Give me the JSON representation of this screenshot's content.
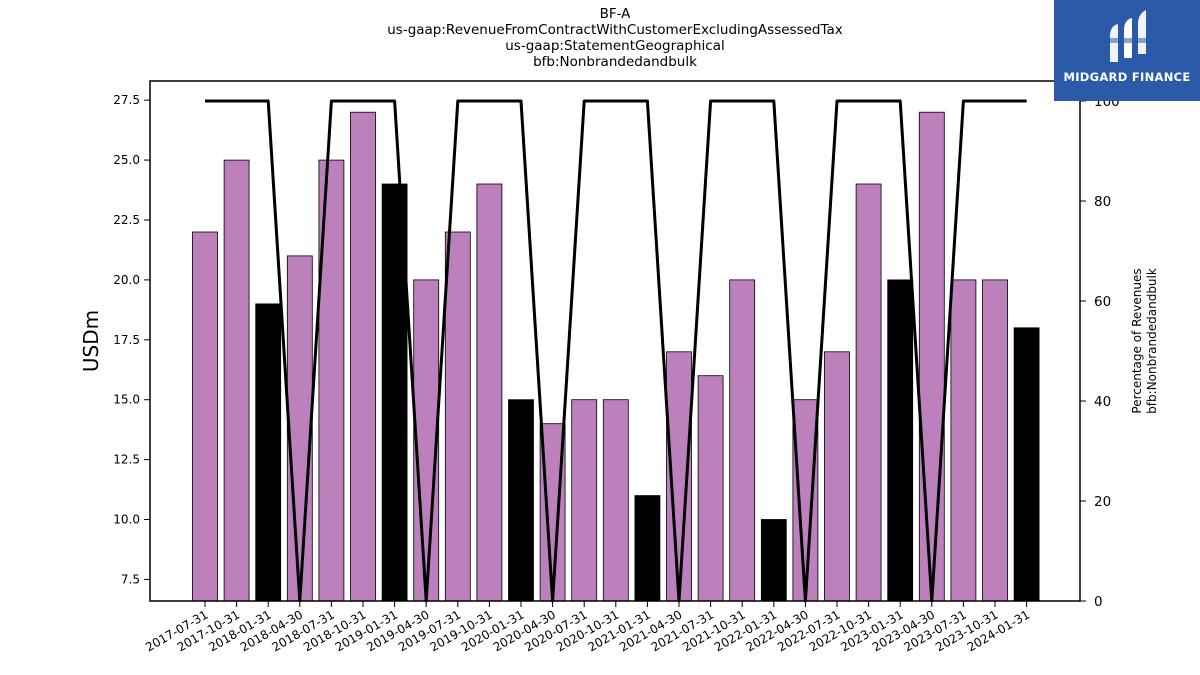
{
  "header": {
    "ticker": "BF-A",
    "concept": "us-gaap:RevenueFromContractWithCustomerExcludingAssessedTax",
    "axis": "us-gaap:StatementGeographical",
    "member": "bfb:Nonbrandedandbulk"
  },
  "brand": {
    "name": "MIDGARD FINANCE",
    "logo_icon": "midgard-logo-icon",
    "background": "#2b5aa8"
  },
  "chart_data": {
    "type": "bar",
    "ylabel": "USDm",
    "y2label_line1": "Percentage of Revenues",
    "y2label_line2": "bfb:Nonbrandedandbulk",
    "ylim": [
      6.6,
      28.3
    ],
    "y2lim": [
      0,
      104
    ],
    "yticks": [
      "7.5",
      "10.0",
      "12.5",
      "15.0",
      "17.5",
      "20.0",
      "22.5",
      "25.0",
      "27.5"
    ],
    "y2ticks": [
      "0",
      "20",
      "40",
      "60",
      "80",
      "100"
    ],
    "categories": [
      "2017-07-31",
      "2017-10-31",
      "2018-01-31",
      "2018-04-30",
      "2018-07-31",
      "2018-10-31",
      "2019-01-31",
      "2019-04-30",
      "2019-07-31",
      "2019-10-31",
      "2020-01-31",
      "2020-04-30",
      "2020-07-31",
      "2020-10-31",
      "2021-01-31",
      "2021-04-30",
      "2021-07-31",
      "2021-10-31",
      "2022-01-31",
      "2022-04-30",
      "2022-07-31",
      "2022-10-31",
      "2023-01-31",
      "2023-04-30",
      "2023-07-31",
      "2023-10-31",
      "2024-01-31"
    ],
    "series": [
      {
        "type": "bar",
        "values": [
          22,
          25,
          19,
          21,
          25,
          27,
          24,
          20,
          22,
          24,
          15,
          14,
          15,
          15,
          11,
          17,
          16,
          20,
          10,
          15,
          17,
          24,
          20,
          27,
          20,
          20,
          18
        ]
      },
      {
        "type": "line",
        "axis": "right",
        "values": [
          100,
          100,
          100,
          0,
          100,
          100,
          100,
          0,
          100,
          100,
          100,
          0,
          100,
          100,
          100,
          0,
          100,
          100,
          100,
          0,
          100,
          100,
          100,
          0,
          100,
          100,
          100
        ]
      }
    ],
    "bar_colors": [
      "#bc80bd",
      "#bc80bd",
      "#000000",
      "#bc80bd",
      "#bc80bd",
      "#bc80bd",
      "#000000",
      "#bc80bd",
      "#bc80bd",
      "#bc80bd",
      "#000000",
      "#bc80bd",
      "#bc80bd",
      "#bc80bd",
      "#000000",
      "#bc80bd",
      "#bc80bd",
      "#bc80bd",
      "#000000",
      "#bc80bd",
      "#bc80bd",
      "#bc80bd",
      "#000000",
      "#bc80bd",
      "#bc80bd",
      "#bc80bd",
      "#000000"
    ],
    "colors": {
      "bar": "#bc80bd",
      "highlight_bar": "#000000",
      "line": "#000000"
    },
    "grid": false,
    "legend": "none"
  }
}
